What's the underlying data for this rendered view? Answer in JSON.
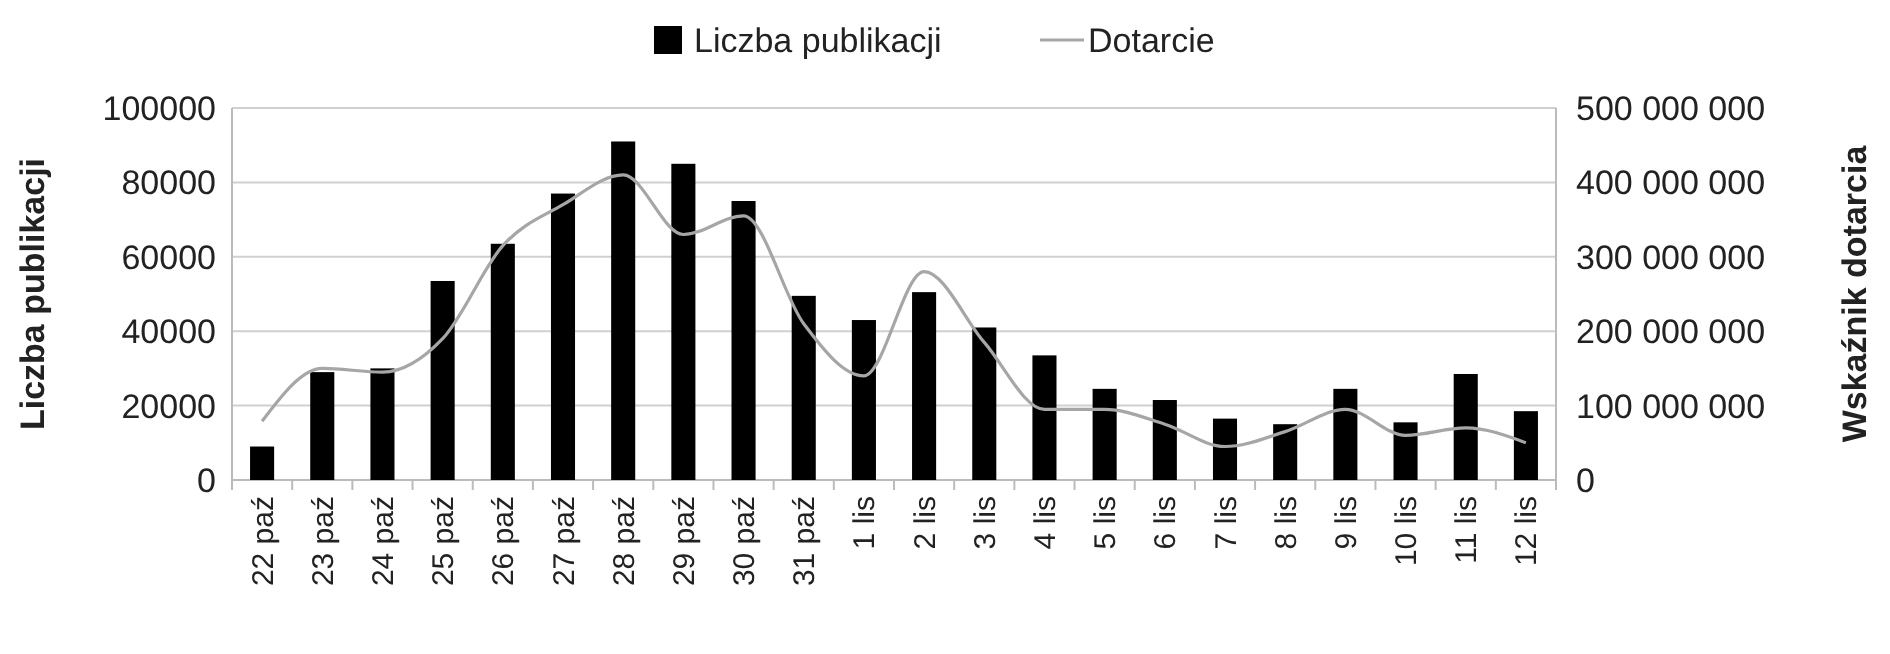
{
  "chart_data": {
    "type": "bar",
    "categories": [
      "22 paź",
      "23 paź",
      "24 paź",
      "25 paź",
      "26 paź",
      "27 paź",
      "28 paź",
      "29 paź",
      "30 paź",
      "31 paź",
      "1 lis",
      "2 lis",
      "3 lis",
      "4 lis",
      "5 lis",
      "6 lis",
      "7 lis",
      "8 lis",
      "9 lis",
      "10 lis",
      "11 lis",
      "12 lis"
    ],
    "series": [
      {
        "name": "Liczba publikacji",
        "color": "#000000",
        "values": [
          9000,
          29000,
          30000,
          53500,
          63500,
          77000,
          91000,
          85000,
          75000,
          49500,
          43000,
          50500,
          41000,
          33500,
          24500,
          21500,
          16500,
          15000,
          24500,
          15500,
          28500,
          18500
        ]
      },
      {
        "name": "Dotarcie",
        "type": "line",
        "axis": "y2",
        "color": "#a6a6a6",
        "values": [
          79000000,
          150000000,
          145000000,
          190000000,
          315000000,
          370000000,
          410000000,
          330000000,
          355000000,
          210000000,
          140000000,
          280000000,
          185000000,
          95000000,
          95000000,
          75000000,
          45000000,
          65000000,
          95000000,
          60000000,
          70000000,
          50000000
        ]
      }
    ],
    "ylabel": "Liczba publikacji",
    "y2label": "Wskaźnik dotarcia",
    "ylim": [
      0,
      100000
    ],
    "yticks": [
      0,
      20000,
      40000,
      60000,
      80000,
      100000
    ],
    "y2lim": [
      0,
      500000000
    ],
    "y2ticks": [
      {
        "value": 0,
        "label": "0"
      },
      {
        "value": 100000000,
        "label": "100 000 000"
      },
      {
        "value": 200000000,
        "label": "200 000 000"
      },
      {
        "value": 300000000,
        "label": "300 000 000"
      },
      {
        "value": 400000000,
        "label": "400 000 000"
      },
      {
        "value": 500000000,
        "label": "500 000 000"
      }
    ],
    "grid": "y",
    "legend": "top",
    "marker": "none"
  }
}
